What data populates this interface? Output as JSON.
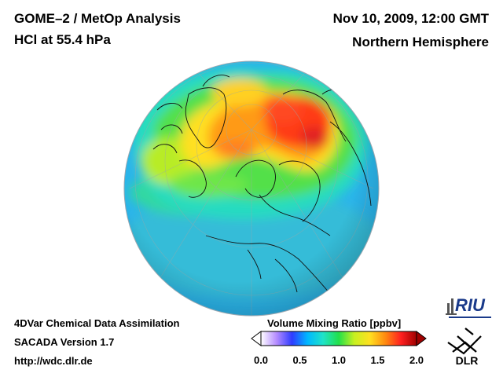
{
  "header": {
    "title_line1": "GOME–2 / MetOp Analysis",
    "title_line2": "HCl at 55.4 hPa",
    "datetime": "Nov 10, 2009, 12:00 GMT",
    "region": "Northern Hemisphere"
  },
  "footer": {
    "line1": "4DVar Chemical Data Assimilation",
    "line2": "SACADA Version 1.7",
    "line3": "http://wdc.dlr.de"
  },
  "colorbar": {
    "title": "Volume Mixing Ratio [ppbv]",
    "ticks": [
      "0.0",
      "0.5",
      "1.0",
      "1.5",
      "2.0"
    ],
    "min": 0.0,
    "max": 2.0,
    "colors": [
      "#ffffff",
      "#b58cff",
      "#2e3cff",
      "#00b8ff",
      "#1fe3c8",
      "#22e04a",
      "#c8f020",
      "#ffe020",
      "#ff8a10",
      "#ff2020",
      "#a00000"
    ]
  },
  "logos": {
    "riu": "RIU",
    "dlr": "DLR"
  },
  "map": {
    "projection": "orthographic, north pole view",
    "background_level_ppbv": 0.5,
    "ocean_color": "#2bb4ea"
  }
}
